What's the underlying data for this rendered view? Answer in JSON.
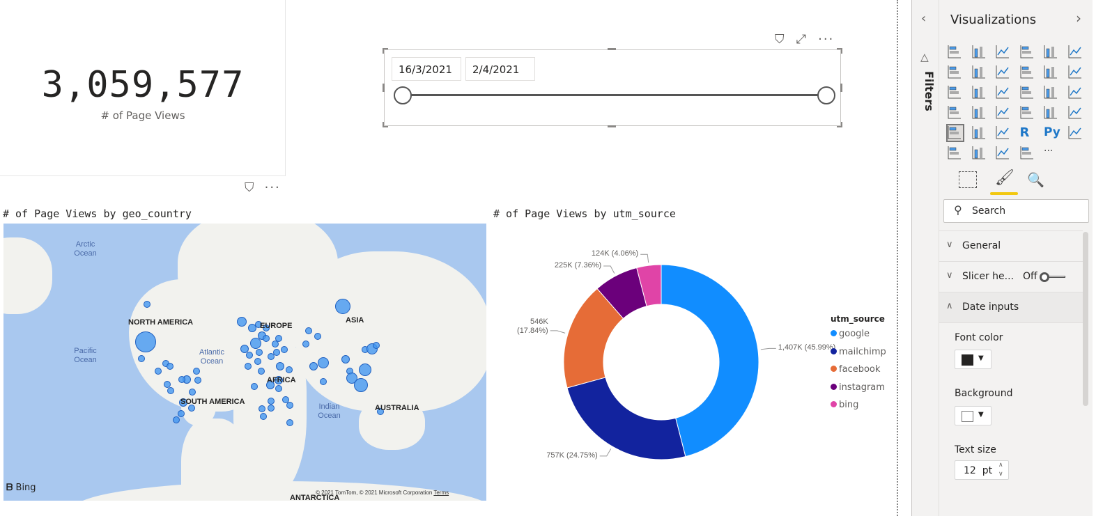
{
  "kpi": {
    "value": "3,059,577",
    "label": "# of Page Views"
  },
  "slicer": {
    "start_date": "16/3/2021",
    "end_date": "2/4/2021",
    "range_start": 0,
    "range_end": 1
  },
  "map_visual": {
    "title": "# of Page Views by geo_country",
    "labels": {
      "north_america": "NORTH AMERICA",
      "south_america": "SOUTH AMERICA",
      "europe": "EUROPE",
      "africa": "AFRICA",
      "asia": "ASIA",
      "australia": "AUSTRALIA",
      "antarctica": "ANTARCTICA"
    },
    "oceans": {
      "arctic": "Arctic Ocean",
      "pacific": "Pacific Ocean",
      "atlantic": "Atlantic Ocean",
      "indian": "Indian Ocean"
    },
    "bing": "Bing",
    "copyright": "© 2021 TomTom, © 2021 Microsoft Corporation",
    "terms": "Terms",
    "colors": {
      "water": "#a9c8ef",
      "bubble": "#4296f0"
    }
  },
  "chart_data": {
    "type": "pie",
    "variant": "donut",
    "title": "# of Page Views by utm_source",
    "legend_title": "utm_source",
    "legend_placement": "right",
    "categories": [
      "google",
      "mailchimp",
      "facebook",
      "instagram",
      "bing"
    ],
    "values": [
      1407,
      757,
      546,
      225,
      124
    ],
    "percents": [
      45.99,
      24.75,
      17.84,
      7.36,
      4.06
    ],
    "data_labels": [
      "1,407K (45.99%)",
      "757K (24.75%)",
      "546K (17.84%)",
      "225K (7.36%)",
      "124K (4.06%)"
    ],
    "colors": [
      "#118dff",
      "#12239e",
      "#e66c37",
      "#6b007b",
      "#e044a7"
    ]
  },
  "filters_pane": {
    "label": "Filters"
  },
  "viz_pane": {
    "title": "Visualizations",
    "icons": [
      "stacked-bar",
      "stacked-column",
      "clustered-bar",
      "clustered-column",
      "100-stacked-bar",
      "100-stacked-column",
      "line",
      "area",
      "stacked-area",
      "line-column",
      "line-clustered-column",
      "ribbon",
      "waterfall",
      "funnel",
      "scatter",
      "pie",
      "donut",
      "treemap",
      "map",
      "filled-map",
      "gauge",
      "card",
      "multi-row-card",
      "kpi",
      "slicer",
      "table",
      "matrix",
      "r-visual",
      "python-visual",
      "key-influencers",
      "decomposition-tree",
      "qa",
      "shape-map",
      "power-apps",
      "more"
    ],
    "search_placeholder": "Search",
    "sections": {
      "general": "General",
      "slicer_header": "Slicer he...",
      "slicer_header_state": "Off",
      "date_inputs": "Date inputs"
    },
    "font_color_label": "Font color",
    "font_color": "#252423",
    "background_label": "Background",
    "background_color": "#ffffff",
    "text_size_label": "Text size",
    "text_size": "12",
    "text_size_unit": "pt"
  }
}
